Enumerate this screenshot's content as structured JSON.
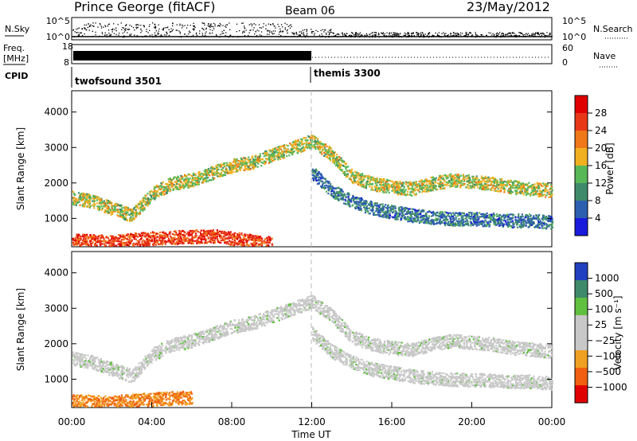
{
  "header": {
    "station": "Prince George (fitACF)",
    "beam": "Beam 06",
    "date": "23/May/2012"
  },
  "nsky_panel": {
    "left_label": "N.Sky",
    "left_ticks": [
      "10^5",
      "10^0"
    ],
    "right_label": "N.Search",
    "right_ticks": [
      "10^5",
      "10^0"
    ]
  },
  "freq_panel": {
    "left_label_1": "Freq.",
    "left_label_2": "[MHz]",
    "left_ticks": [
      "18",
      "8"
    ],
    "right_label": "Nave",
    "right_ticks": [
      "60",
      "0"
    ]
  },
  "cpid_panel": {
    "label": "CPID",
    "modes": [
      {
        "name": "twofsound 3501",
        "start_hour": 0
      },
      {
        "name": "themis 3300",
        "start_hour": 12
      }
    ]
  },
  "colors": {
    "power_scale": [
      "#1a1adc",
      "#2d5fb0",
      "#3f8a6a",
      "#58b858",
      "#f0b020",
      "#f07818",
      "#e83818",
      "#e00000"
    ],
    "velocity_scale": [
      "#e00000",
      "#f06010",
      "#f0a020",
      "#c8c8c8",
      "#c8c8c8",
      "#60c040",
      "#3f8a6a",
      "#2040c0"
    ]
  },
  "chart_data": [
    {
      "type": "heatmap",
      "panel": "power",
      "ylabel": "Slant Range [km]",
      "yticks": [
        "4000",
        "3000",
        "2000",
        "1000"
      ],
      "ylim": [
        200,
        4600
      ],
      "xlim_hours": [
        0,
        24
      ],
      "colorbar_label": "Power [dB]",
      "colorbar_ticks": [
        "28",
        "24",
        "20",
        "16",
        "12",
        "8",
        "4"
      ],
      "colorbar_range": [
        0,
        32
      ],
      "scatter_bands": [
        {
          "x": [
            0,
            1,
            2,
            3,
            4,
            5,
            6,
            7,
            8,
            9,
            10,
            11,
            12,
            13,
            14,
            15,
            16,
            17,
            18,
            19,
            20,
            21,
            22,
            23,
            24
          ],
          "y": [
            1600,
            1500,
            1300,
            1100,
            1700,
            2000,
            2100,
            2300,
            2500,
            2600,
            2800,
            3000,
            3200,
            2800,
            2200,
            2000,
            1900,
            1850,
            2000,
            2100,
            2050,
            2000,
            1900,
            1850,
            1800
          ],
          "value": 16
        },
        {
          "x": [
            0,
            1,
            2,
            3,
            4,
            5,
            6,
            7,
            8,
            9,
            10
          ],
          "y": [
            400,
            380,
            350,
            420,
            450,
            480,
            500,
            520,
            450,
            380,
            300
          ],
          "value": 26
        },
        {
          "x": [
            12,
            13,
            14,
            15,
            16,
            17,
            18,
            19,
            20,
            21,
            22,
            23,
            24
          ],
          "y": [
            2300,
            1800,
            1500,
            1300,
            1200,
            1100,
            1050,
            1000,
            1000,
            980,
            950,
            950,
            900
          ],
          "value": 8
        }
      ]
    },
    {
      "type": "heatmap",
      "panel": "velocity",
      "ylabel": "Slant Range [km]",
      "yticks": [
        "4000",
        "3000",
        "2000",
        "1000"
      ],
      "ylim": [
        200,
        4600
      ],
      "xlim_hours": [
        0,
        24
      ],
      "xticks": [
        "00:00",
        "04:00",
        "08:00",
        "12:00",
        "16:00",
        "20:00",
        "00:00"
      ],
      "xlabel": "Time UT",
      "colorbar_label": "Velocity [m s⁻¹]",
      "colorbar_ticks": [
        "1000",
        "500",
        "100",
        "25",
        "−25",
        "−100",
        "−500",
        "−1000"
      ],
      "scatter_bands": [
        {
          "x": [
            0,
            1,
            2,
            3,
            4,
            5,
            6,
            7,
            8,
            9,
            10,
            11,
            12,
            13,
            14,
            15,
            16,
            17,
            18,
            19,
            20,
            21,
            22,
            23,
            24
          ],
          "y": [
            1600,
            1500,
            1300,
            1100,
            1700,
            2000,
            2100,
            2300,
            2500,
            2600,
            2800,
            3000,
            3200,
            2800,
            2200,
            2000,
            1900,
            1850,
            2000,
            2100,
            2050,
            2000,
            1900,
            1850,
            1800
          ],
          "value": 0
        },
        {
          "x": [
            0,
            1,
            2,
            3,
            4,
            5,
            6
          ],
          "y": [
            400,
            380,
            350,
            420,
            450,
            480,
            500
          ],
          "value": -300
        },
        {
          "x": [
            12,
            13,
            14,
            15,
            16,
            17,
            18,
            19,
            20,
            21,
            22,
            23,
            24
          ],
          "y": [
            2300,
            1800,
            1500,
            1300,
            1200,
            1100,
            1050,
            1000,
            1000,
            980,
            950,
            950,
            900
          ],
          "value": 0
        }
      ]
    }
  ]
}
